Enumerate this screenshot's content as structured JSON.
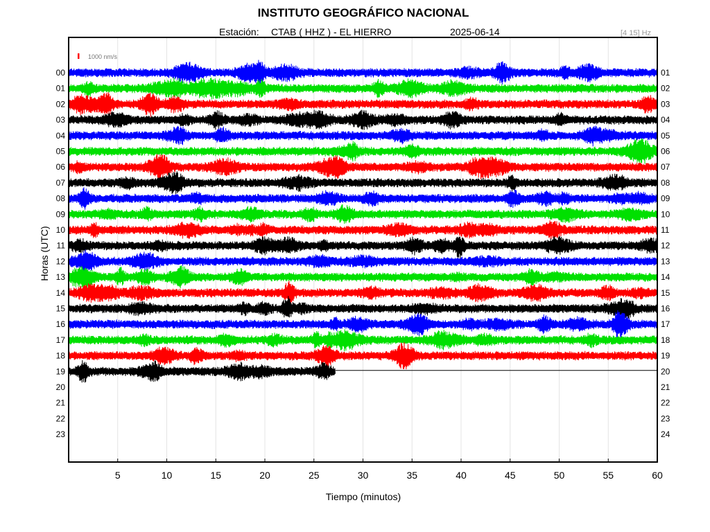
{
  "header": {
    "title": "INSTITUTO GEOGRÁFICO NACIONAL",
    "station_label": "Estación:",
    "station": "CTAB ( HHZ ) - EL HIERRO",
    "date": "2025-06-14",
    "filter": "[4 15] Hz"
  },
  "chart_data": {
    "type": "line",
    "title": "INSTITUTO GEOGRÁFICO NACIONAL",
    "xlabel": "Tiempo (minutos)",
    "ylabel": "Horas (UTC)",
    "xlim": [
      0,
      60
    ],
    "x_ticks": [
      "5",
      "10",
      "15",
      "20",
      "25",
      "30",
      "35",
      "40",
      "45",
      "50",
      "55",
      "60"
    ],
    "left_hours": [
      "00",
      "01",
      "02",
      "03",
      "04",
      "05",
      "06",
      "07",
      "08",
      "09",
      "10",
      "11",
      "12",
      "13",
      "14",
      "15",
      "16",
      "17",
      "18",
      "19",
      "20",
      "21",
      "22",
      "23"
    ],
    "right_hours": [
      "01",
      "02",
      "03",
      "04",
      "05",
      "06",
      "07",
      "08",
      "09",
      "10",
      "11",
      "12",
      "13",
      "14",
      "15",
      "16",
      "17",
      "18",
      "19",
      "20",
      "21",
      "22",
      "23",
      "24"
    ],
    "scale_label": "1000 nm/s",
    "grid": true,
    "trace_colors": [
      "#0000ff",
      "#00e000",
      "#ff0000",
      "#000000"
    ],
    "traces_recorded_hours": 20,
    "last_trace_end_minute": 27.2,
    "events": [
      {
        "hour": 0,
        "minute": 19.5
      },
      {
        "hour": 8,
        "minute": 1.6
      },
      {
        "hour": 11,
        "minute": 39.8
      },
      {
        "hour": 14,
        "minute": 22.5
      },
      {
        "hour": 15,
        "minute": 22.3
      },
      {
        "hour": 16,
        "minute": 56.0
      },
      {
        "hour": 19,
        "minute": 1.5
      }
    ]
  }
}
